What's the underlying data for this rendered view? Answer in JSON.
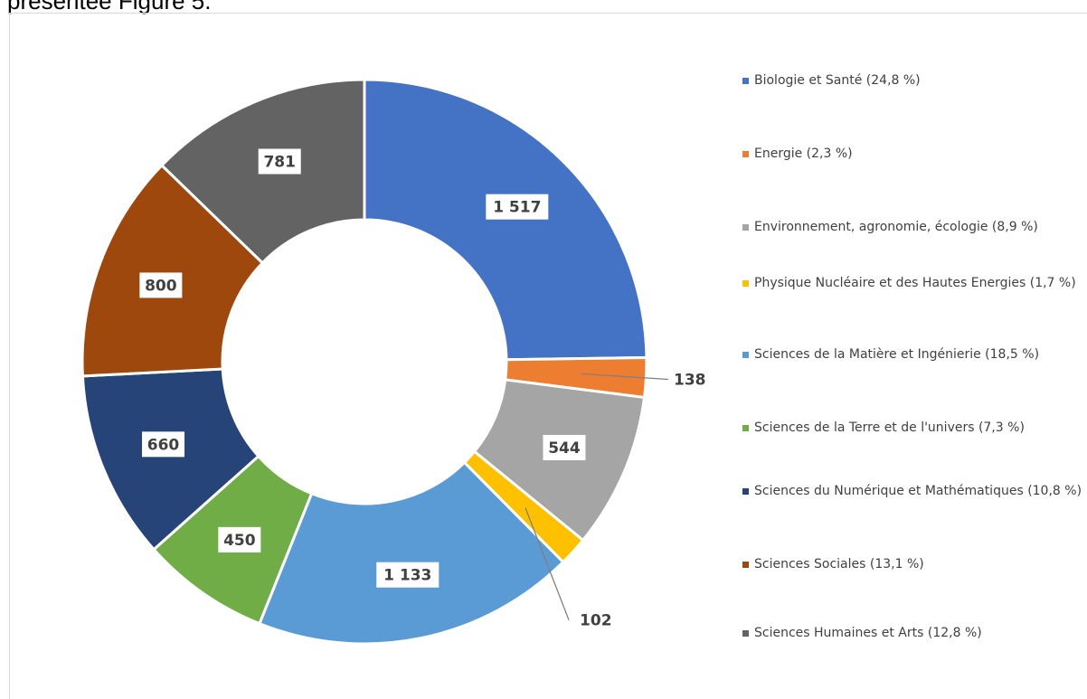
{
  "header": {
    "text": "présentée Figure 5."
  },
  "chart_data": {
    "type": "pie",
    "subtype": "donut",
    "title": "",
    "legend_position": "right",
    "series": [
      {
        "name": "Biologie et Santé (24,8 %)",
        "value": 1517,
        "label": "1 517",
        "color": "#4472C4"
      },
      {
        "name": "Energie (2,3 %)",
        "value": 138,
        "label": "138",
        "color": "#ED7D31"
      },
      {
        "name": "Environnement, agronomie, écologie (8,9 %)",
        "value": 544,
        "label": "544",
        "color": "#A5A5A5"
      },
      {
        "name": "Physique Nucléaire et des Hautes Energies (1,7 %)",
        "value": 102,
        "label": "102",
        "color": "#FFC000"
      },
      {
        "name": "Sciences de la Matière et Ingénierie (18,5 %)",
        "value": 1133,
        "label": "1 133",
        "color": "#5B9BD5"
      },
      {
        "name": "Sciences de la Terre et de l'univers (7,3 %)",
        "value": 450,
        "label": "450",
        "color": "#70AD47"
      },
      {
        "name": "Sciences du Numérique et Mathématiques (10,8 %)",
        "value": 660,
        "label": "660",
        "color": "#264478"
      },
      {
        "name": "Sciences Sociales (13,1 %)",
        "value": 800,
        "label": "800",
        "color": "#9E480E"
      },
      {
        "name": "Sciences Humaines et Arts (12,8 %)",
        "value": 781,
        "label": "781",
        "color": "#636363"
      }
    ]
  }
}
